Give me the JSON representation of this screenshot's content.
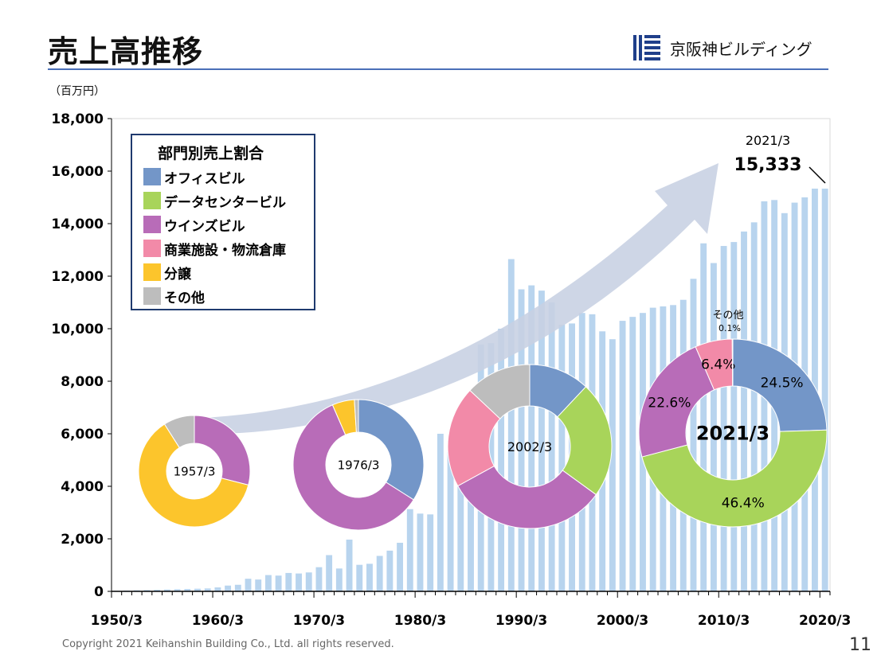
{
  "header": {
    "title": "売上高推移",
    "company_name": "京阪神ビルディング",
    "logo_icon": "building-stripes-logo"
  },
  "unit_label": "（百万円）",
  "footer": {
    "copyright": "Copyright 2021 Keihanshin Building Co., Ltd. all rights reserved.",
    "page_number": "11"
  },
  "colors": {
    "bar": "#b8d4ee",
    "arrow": "#c7d0e3",
    "office": "#7396c8",
    "datacenter": "#a8d45a",
    "wins": "#b86cb8",
    "commercial": "#f28aa8",
    "condo": "#fcc52c",
    "other": "#bdbdbd"
  },
  "legend": {
    "title": "部門別売上割合",
    "items": [
      {
        "label": "オフィスビル",
        "color": "#7396c8"
      },
      {
        "label": "データセンタービル",
        "color": "#a8d45a"
      },
      {
        "label": "ウインズビル",
        "color": "#b86cb8"
      },
      {
        "label": "商業施設・物流倉庫",
        "color": "#f28aa8"
      },
      {
        "label": "分譲",
        "color": "#fcc52c"
      },
      {
        "label": "その他",
        "color": "#bdbdbd"
      }
    ]
  },
  "chart_data": [
    {
      "type": "bar",
      "ylim": [
        0,
        18000
      ],
      "yticks": [
        0,
        2000,
        4000,
        6000,
        8000,
        10000,
        12000,
        14000,
        16000,
        18000
      ],
      "ytick_labels": [
        "0",
        "2,000",
        "4,000",
        "6,000",
        "8,000",
        "10,000",
        "12,000",
        "14,000",
        "16,000",
        "18,000"
      ],
      "x_tick_labels": [
        "1950/3",
        "1960/3",
        "1970/3",
        "1980/3",
        "1990/3",
        "2000/3",
        "2010/3",
        "2020/3"
      ],
      "x_start_year": 1950,
      "x_end_year": 2021,
      "values": [
        20,
        30,
        40,
        50,
        60,
        70,
        80,
        90,
        100,
        110,
        150,
        220,
        250,
        480,
        450,
        620,
        600,
        700,
        680,
        720,
        920,
        1380,
        870,
        1970,
        1010,
        1050,
        1350,
        1550,
        1850,
        3130,
        2960,
        2930,
        6000,
        5300,
        5200,
        5800,
        9400,
        9450,
        10000,
        12650,
        11500,
        11650,
        11450,
        11000,
        10150,
        10200,
        10600,
        10550,
        9900,
        9600,
        10300,
        10450,
        10600,
        10800,
        10850,
        10900,
        11100,
        11900,
        13250,
        12500,
        13150,
        13300,
        13700,
        14050,
        14850,
        14900,
        14400,
        14800,
        15000,
        15333,
        15333
      ],
      "annotation": {
        "label": "2021/3",
        "value": "15,333"
      }
    },
    {
      "type": "pie",
      "name": "1957/3",
      "slices": [
        {
          "category": "ウインズビル",
          "value": 29.0
        },
        {
          "category": "分譲",
          "value": 62.0
        },
        {
          "category": "その他",
          "value": 9.0
        }
      ]
    },
    {
      "type": "pie",
      "name": "1976/3",
      "slices": [
        {
          "category": "オフィスビル",
          "value": 34.0
        },
        {
          "category": "ウインズビル",
          "value": 59.5
        },
        {
          "category": "分譲",
          "value": 5.5
        },
        {
          "category": "その他",
          "value": 1.0
        }
      ]
    },
    {
      "type": "pie",
      "name": "2002/3",
      "slices": [
        {
          "category": "オフィスビル",
          "value": 12.0
        },
        {
          "category": "データセンタービル",
          "value": 23.0
        },
        {
          "category": "ウインズビル",
          "value": 32.0
        },
        {
          "category": "商業施設・物流倉庫",
          "value": 20.0
        },
        {
          "category": "その他",
          "value": 13.0
        }
      ]
    },
    {
      "type": "pie",
      "name": "2021/3",
      "slices": [
        {
          "category": "オフィスビル",
          "value": 24.5,
          "label": "24.5%"
        },
        {
          "category": "データセンタービル",
          "value": 46.4,
          "label": "46.4%"
        },
        {
          "category": "ウインズビル",
          "value": 22.6,
          "label": "22.6%"
        },
        {
          "category": "商業施設・物流倉庫",
          "value": 6.4,
          "label": "6.4%"
        },
        {
          "category": "その他",
          "value": 0.1,
          "label": "0.1%",
          "name_label": "その他"
        }
      ]
    }
  ]
}
